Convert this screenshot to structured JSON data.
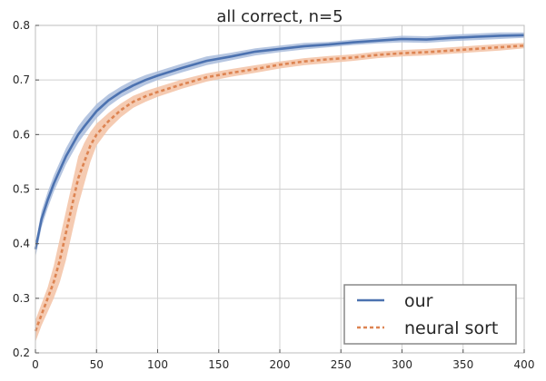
{
  "chart_data": {
    "type": "line",
    "title": "all correct,  n=5",
    "xlabel": "",
    "ylabel": "",
    "xlim": [
      0,
      400
    ],
    "ylim": [
      0.2,
      0.8
    ],
    "xticks": [
      "0",
      "50",
      "100",
      "150",
      "200",
      "250",
      "300",
      "350",
      "400"
    ],
    "yticks": [
      "0.2",
      "0.3",
      "0.4",
      "0.5",
      "0.6",
      "0.7",
      "0.8"
    ],
    "grid": true,
    "legend_position": "bottom-right",
    "series": [
      {
        "name": "our",
        "color": "#4c72b0",
        "style": "solid",
        "band_color": "#a9bcdc",
        "x": [
          0,
          5,
          10,
          15,
          20,
          25,
          30,
          35,
          40,
          50,
          60,
          70,
          80,
          90,
          100,
          120,
          140,
          160,
          180,
          200,
          220,
          240,
          260,
          280,
          300,
          320,
          340,
          360,
          380,
          400
        ],
        "y": [
          0.39,
          0.445,
          0.48,
          0.51,
          0.535,
          0.56,
          0.58,
          0.6,
          0.615,
          0.643,
          0.663,
          0.678,
          0.69,
          0.7,
          0.708,
          0.722,
          0.735,
          0.743,
          0.752,
          0.757,
          0.762,
          0.765,
          0.769,
          0.772,
          0.775,
          0.774,
          0.777,
          0.779,
          0.781,
          0.782
        ],
        "y_low": [
          0.375,
          0.43,
          0.465,
          0.495,
          0.52,
          0.545,
          0.565,
          0.585,
          0.6,
          0.63,
          0.652,
          0.668,
          0.68,
          0.691,
          0.7,
          0.714,
          0.727,
          0.736,
          0.745,
          0.751,
          0.756,
          0.76,
          0.764,
          0.767,
          0.769,
          0.768,
          0.771,
          0.773,
          0.775,
          0.777
        ],
        "y_high": [
          0.4,
          0.46,
          0.495,
          0.525,
          0.55,
          0.575,
          0.595,
          0.615,
          0.63,
          0.656,
          0.674,
          0.688,
          0.7,
          0.709,
          0.716,
          0.73,
          0.743,
          0.75,
          0.758,
          0.763,
          0.768,
          0.77,
          0.774,
          0.777,
          0.781,
          0.78,
          0.783,
          0.785,
          0.787,
          0.787
        ]
      },
      {
        "name": "neural sort",
        "color": "#dd8452",
        "style": "dashed",
        "band_color": "#f3c2a5",
        "x": [
          0,
          5,
          10,
          15,
          20,
          25,
          30,
          35,
          40,
          45,
          50,
          60,
          70,
          80,
          90,
          100,
          120,
          140,
          160,
          180,
          200,
          220,
          240,
          260,
          280,
          300,
          320,
          340,
          360,
          380,
          400
        ],
        "y": [
          0.24,
          0.27,
          0.3,
          0.33,
          0.37,
          0.42,
          0.47,
          0.52,
          0.55,
          0.58,
          0.6,
          0.625,
          0.645,
          0.66,
          0.67,
          0.678,
          0.692,
          0.705,
          0.713,
          0.72,
          0.728,
          0.734,
          0.738,
          0.741,
          0.746,
          0.749,
          0.751,
          0.754,
          0.757,
          0.76,
          0.763
        ],
        "y_low": [
          0.22,
          0.25,
          0.275,
          0.3,
          0.33,
          0.37,
          0.42,
          0.47,
          0.51,
          0.55,
          0.58,
          0.61,
          0.632,
          0.649,
          0.66,
          0.669,
          0.684,
          0.697,
          0.706,
          0.713,
          0.721,
          0.727,
          0.731,
          0.735,
          0.74,
          0.743,
          0.745,
          0.748,
          0.751,
          0.754,
          0.758
        ],
        "y_high": [
          0.26,
          0.29,
          0.32,
          0.36,
          0.41,
          0.46,
          0.51,
          0.56,
          0.585,
          0.605,
          0.62,
          0.64,
          0.657,
          0.671,
          0.68,
          0.687,
          0.701,
          0.712,
          0.72,
          0.727,
          0.734,
          0.74,
          0.744,
          0.747,
          0.752,
          0.755,
          0.757,
          0.76,
          0.763,
          0.766,
          0.768
        ]
      }
    ]
  }
}
